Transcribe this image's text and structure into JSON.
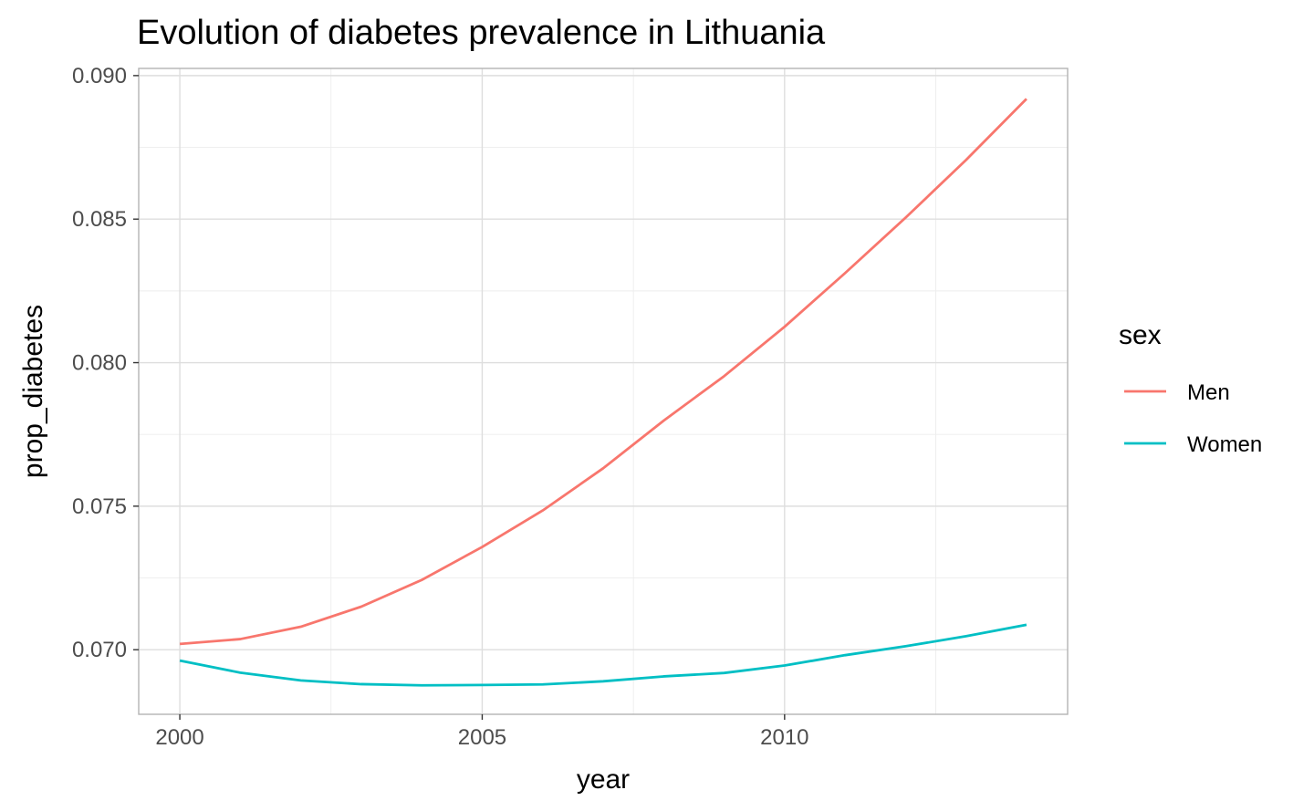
{
  "chart_data": {
    "type": "line",
    "title": "Evolution of diabetes prevalence in Lithuania",
    "xlabel": "year",
    "ylabel": "prop_diabetes",
    "x": [
      2000,
      2001,
      2002,
      2003,
      2004,
      2005,
      2006,
      2007,
      2008,
      2009,
      2010,
      2011,
      2012,
      2013,
      2014
    ],
    "xlim": [
      1999.32,
      2014.68
    ],
    "ylim": [
      0.06775,
      0.09025
    ],
    "x_ticks": [
      2000,
      2005,
      2010
    ],
    "x_tick_labels": [
      "2000",
      "2005",
      "2010"
    ],
    "x_minor_ticks": [
      2002.5,
      2007.5,
      2012.5
    ],
    "y_ticks": [
      0.07,
      0.075,
      0.08,
      0.085,
      0.09
    ],
    "y_tick_labels": [
      "0.070",
      "0.075",
      "0.080",
      "0.085",
      "0.090"
    ],
    "y_minor_ticks": [
      0.0725,
      0.0775,
      0.0825,
      0.0875
    ],
    "grid": true,
    "legend": {
      "title": "sex",
      "position": "right"
    },
    "series": [
      {
        "name": "Men",
        "color": "#F8766D",
        "values": [
          0.0702,
          0.07037,
          0.0708,
          0.0715,
          0.07243,
          0.07358,
          0.07485,
          0.07632,
          0.07798,
          0.07953,
          0.08125,
          0.08312,
          0.08505,
          0.08706,
          0.08919
        ]
      },
      {
        "name": "Women",
        "color": "#00BFC4",
        "values": [
          0.06962,
          0.0692,
          0.06893,
          0.0688,
          0.06876,
          0.06877,
          0.06879,
          0.0689,
          0.06907,
          0.06919,
          0.06945,
          0.06981,
          0.07012,
          0.07047,
          0.07087
        ]
      }
    ]
  }
}
